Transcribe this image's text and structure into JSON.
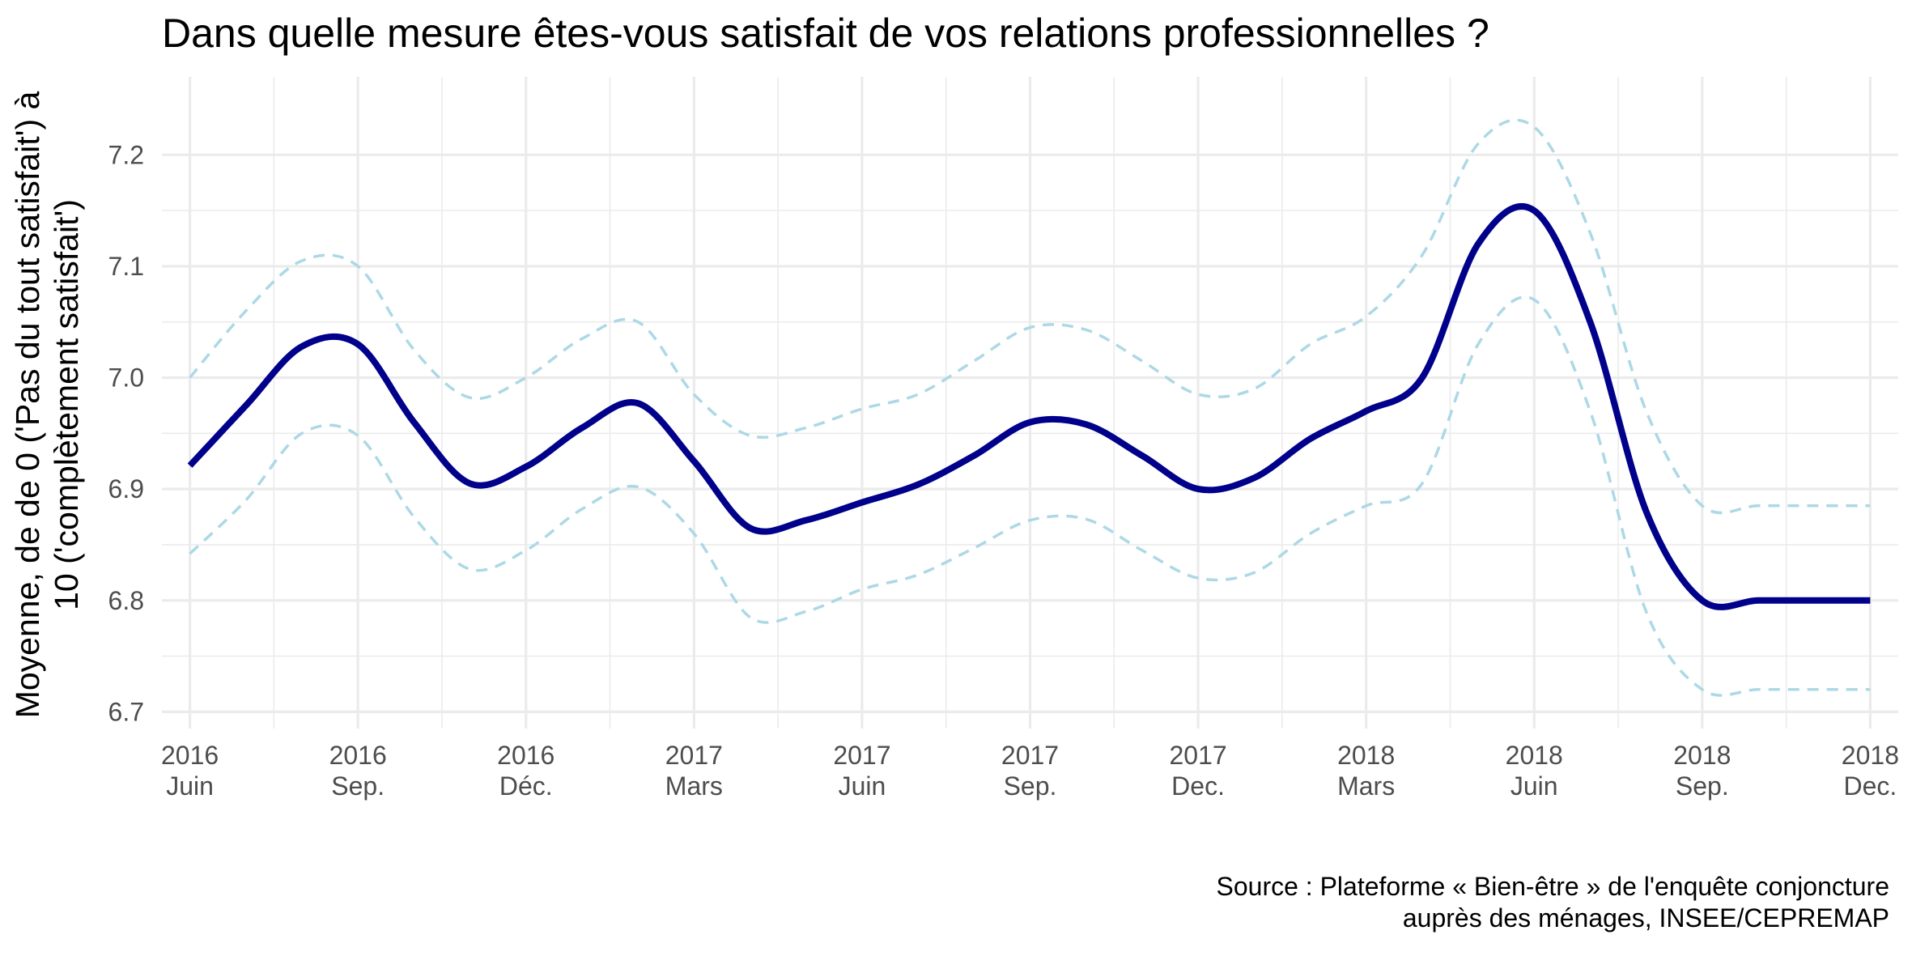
{
  "chart_data": {
    "type": "line",
    "title": "Dans quelle mesure êtes-vous satisfait de vos relations professionnelles ?",
    "ylabel_lines": [
      "Moyenne, de de 0 ('Pas du tout satisfait') à",
      "10 ('complètement satisfait')"
    ],
    "caption_lines": [
      "Source : Plateforme « Bien-être » de l'enquête conjoncture",
      "auprès des ménages, INSEE/CEPREMAP"
    ],
    "ylim": [
      6.685,
      7.27
    ],
    "y_ticks": [
      6.7,
      6.8,
      6.9,
      7.0,
      7.1,
      7.2
    ],
    "y_tick_labels": [
      "6.7",
      "6.8",
      "6.9",
      "7.0",
      "7.1",
      "7.2"
    ],
    "xlim": [
      -0.5,
      30.5
    ],
    "x_ticks": [
      0,
      3,
      6,
      9,
      12,
      15,
      18,
      21,
      24,
      27,
      30
    ],
    "x_tick_labels": [
      [
        "2016",
        "Juin"
      ],
      [
        "2016",
        "Sep."
      ],
      [
        "2016",
        "Déc."
      ],
      [
        "2017",
        "Mars"
      ],
      [
        "2017",
        "Juin"
      ],
      [
        "2017",
        "Sep."
      ],
      [
        "2017",
        "Dec."
      ],
      [
        "2018",
        "Mars"
      ],
      [
        "2018",
        "Juin"
      ],
      [
        "2018",
        "Sep."
      ],
      [
        "2018",
        "Dec."
      ]
    ],
    "grid": true,
    "series": [
      {
        "role": "mean",
        "color": "#00008b",
        "dash": "solid",
        "x": [
          0,
          1,
          2,
          3,
          4,
          5,
          6,
          7,
          8,
          9,
          10,
          11,
          12,
          13,
          14,
          15,
          16,
          17,
          18,
          19,
          20,
          21,
          22,
          23,
          24,
          25,
          26,
          27,
          28,
          29,
          30
        ],
        "values": [
          6.921,
          6.975,
          7.028,
          7.03,
          6.96,
          6.905,
          6.92,
          6.955,
          6.977,
          6.925,
          6.865,
          6.872,
          6.888,
          6.904,
          6.93,
          6.96,
          6.958,
          6.93,
          6.9,
          6.91,
          6.945,
          6.97,
          7.0,
          7.12,
          7.15,
          7.05,
          6.88,
          6.8,
          6.8,
          6.8,
          6.8
        ]
      },
      {
        "role": "upper",
        "color": "#add8e6",
        "dash": "dashed",
        "x": [
          0,
          1,
          2,
          3,
          4,
          5,
          6,
          7,
          8,
          9,
          10,
          11,
          12,
          13,
          14,
          15,
          16,
          17,
          18,
          19,
          20,
          21,
          22,
          23,
          24,
          25,
          26,
          27,
          28,
          29,
          30
        ],
        "values": [
          7.0,
          7.06,
          7.105,
          7.1,
          7.025,
          6.982,
          7.0,
          7.035,
          7.05,
          6.985,
          6.948,
          6.955,
          6.972,
          6.985,
          7.015,
          7.045,
          7.043,
          7.015,
          6.985,
          6.99,
          7.03,
          7.055,
          7.11,
          7.21,
          7.225,
          7.13,
          6.97,
          6.885,
          6.885,
          6.885,
          6.885
        ]
      },
      {
        "role": "lower",
        "color": "#add8e6",
        "dash": "dashed",
        "x": [
          0,
          1,
          2,
          3,
          4,
          5,
          6,
          7,
          8,
          9,
          10,
          11,
          12,
          13,
          14,
          15,
          16,
          17,
          18,
          19,
          20,
          21,
          22,
          23,
          24,
          25,
          26,
          27,
          28,
          29,
          30
        ],
        "values": [
          6.842,
          6.89,
          6.95,
          6.948,
          6.875,
          6.828,
          6.845,
          6.882,
          6.902,
          6.86,
          6.785,
          6.79,
          6.81,
          6.823,
          6.847,
          6.872,
          6.873,
          6.845,
          6.82,
          6.825,
          6.86,
          6.885,
          6.905,
          7.03,
          7.07,
          6.97,
          6.79,
          6.72,
          6.72,
          6.72,
          6.72
        ]
      }
    ]
  }
}
